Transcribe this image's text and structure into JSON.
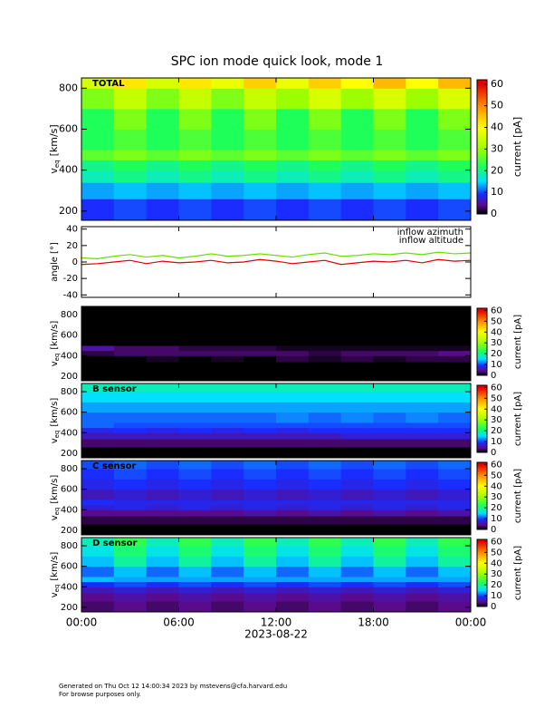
{
  "chart_data": [
    {
      "type": "heatmap",
      "title": "SPC ion mode quick look, mode 1",
      "label": "TOTAL",
      "ylabel": {
        "main": "v",
        "sub": "eq",
        "unit": "[km/s]"
      },
      "ylim": [
        155,
        850
      ],
      "yticks": [
        200,
        400,
        600,
        800
      ],
      "xbins": [
        0,
        2,
        4,
        6,
        8,
        10,
        12,
        14,
        16,
        18,
        20,
        22,
        24
      ],
      "ybins": [
        155,
        260,
        340,
        400,
        450,
        500,
        600,
        700,
        800,
        850
      ],
      "z": [
        [
          9,
          10,
          9,
          10,
          9,
          10,
          9,
          10,
          9,
          10,
          9,
          10
        ],
        [
          13,
          14,
          13,
          14,
          13,
          14,
          13,
          14,
          13,
          14,
          13,
          14
        ],
        [
          18,
          20,
          18,
          20,
          18,
          20,
          18,
          20,
          18,
          20,
          18,
          20
        ],
        [
          20,
          22,
          20,
          22,
          20,
          22,
          20,
          22,
          20,
          22,
          20,
          22
        ],
        [
          26,
          28,
          26,
          28,
          26,
          28,
          26,
          28,
          26,
          28,
          26,
          28
        ],
        [
          22,
          25,
          22,
          25,
          22,
          25,
          22,
          25,
          22,
          25,
          22,
          25
        ],
        [
          22,
          28,
          22,
          28,
          22,
          28,
          22,
          28,
          22,
          28,
          22,
          28
        ],
        [
          28,
          34,
          28,
          34,
          28,
          34,
          30,
          36,
          30,
          36,
          30,
          36
        ],
        [
          36,
          42,
          36,
          42,
          38,
          44,
          38,
          44,
          40,
          46,
          40,
          46
        ]
      ],
      "colorbar": {
        "label": "current [pA]",
        "lim": [
          0,
          62
        ],
        "ticks": [
          0,
          10,
          20,
          30,
          40,
          50,
          60
        ]
      }
    },
    {
      "type": "line",
      "ylabel": "angle [°]",
      "ylim": [
        -43,
        43
      ],
      "yticks": [
        -40,
        -20,
        0,
        20,
        40
      ],
      "x": [
        0,
        1,
        2,
        3,
        4,
        5,
        6,
        7,
        8,
        9,
        10,
        11,
        12,
        13,
        14,
        15,
        16,
        17,
        18,
        19,
        20,
        21,
        22,
        23,
        24
      ],
      "series": [
        {
          "name": "inflow azimuth",
          "color": "#e00000",
          "values": [
            -3,
            -2,
            0,
            2,
            -2,
            1,
            -1,
            0,
            2,
            -1,
            0,
            3,
            1,
            -2,
            0,
            2,
            -3,
            -1,
            1,
            0,
            2,
            -1,
            3,
            1,
            2
          ]
        },
        {
          "name": "inflow altitude",
          "color": "#66e000",
          "values": [
            5,
            4,
            7,
            9,
            6,
            8,
            5,
            7,
            10,
            7,
            8,
            10,
            8,
            6,
            9,
            11,
            7,
            8,
            10,
            9,
            11,
            9,
            12,
            10,
            11
          ]
        }
      ]
    },
    {
      "type": "heatmap",
      "ylabel": {
        "main": "v",
        "sub": "eq",
        "unit": "[km/s]"
      },
      "ylim": [
        155,
        880
      ],
      "yticks": [
        200,
        400,
        600,
        800
      ],
      "xbins": [
        0,
        2,
        4,
        6,
        8,
        10,
        12,
        14,
        16,
        18,
        20,
        22,
        24
      ],
      "ybins": [
        155,
        260,
        340,
        400,
        450,
        500,
        600,
        700,
        800,
        880
      ],
      "z": [
        [
          0,
          0,
          0,
          0,
          0,
          0,
          0,
          0,
          0,
          0,
          0,
          0
        ],
        [
          0,
          0,
          0,
          0,
          0,
          0,
          0,
          0,
          0,
          0,
          0,
          0
        ],
        [
          0,
          0,
          1,
          0,
          1,
          0,
          2,
          1,
          2,
          1,
          2,
          2
        ],
        [
          2,
          3,
          3,
          3,
          3,
          3,
          3,
          2,
          3,
          3,
          3,
          4
        ],
        [
          5,
          3,
          3,
          2,
          2,
          2,
          1,
          1,
          1,
          1,
          1,
          1
        ],
        [
          0,
          0,
          0,
          0,
          0,
          0,
          0,
          0,
          0,
          0,
          0,
          0
        ],
        [
          0,
          0,
          0,
          0,
          0,
          0,
          0,
          0,
          0,
          0,
          0,
          0
        ],
        [
          0,
          0,
          0,
          0,
          0,
          0,
          0,
          0,
          0,
          0,
          0,
          0
        ],
        [
          0,
          0,
          0,
          0,
          0,
          0,
          0,
          0,
          0,
          0,
          0,
          0
        ]
      ],
      "colorbar": {
        "label": "current [pA]",
        "lim": [
          0,
          62
        ],
        "ticks": [
          0,
          10,
          20,
          30,
          40,
          50,
          60
        ]
      }
    },
    {
      "type": "heatmap",
      "label": "B sensor",
      "ylabel": {
        "main": "v",
        "sub": "eq",
        "unit": "[km/s]"
      },
      "ylim": [
        155,
        880
      ],
      "yticks": [
        200,
        400,
        600,
        800
      ],
      "xbins": [
        0,
        2,
        4,
        6,
        8,
        10,
        12,
        14,
        16,
        18,
        20,
        22,
        24
      ],
      "ybins": [
        155,
        260,
        340,
        400,
        450,
        500,
        600,
        700,
        800,
        880
      ],
      "z": [
        [
          0,
          0,
          0,
          0,
          0,
          0,
          0,
          0,
          0,
          0,
          0,
          0
        ],
        [
          3,
          3,
          3,
          3,
          3,
          3,
          3,
          3,
          3,
          3,
          3,
          3
        ],
        [
          6,
          6,
          6,
          6,
          6,
          6,
          6,
          6,
          7,
          7,
          7,
          7
        ],
        [
          8,
          9,
          8,
          9,
          8,
          9,
          8,
          9,
          9,
          9,
          9,
          9
        ],
        [
          11,
          10,
          10,
          10,
          10,
          10,
          10,
          10,
          10,
          10,
          10,
          10
        ],
        [
          11,
          11,
          11,
          11,
          11,
          11,
          12,
          11,
          12,
          11,
          12,
          11
        ],
        [
          13,
          13,
          13,
          13,
          13,
          13,
          13,
          13,
          13,
          13,
          13,
          13
        ],
        [
          15,
          15,
          15,
          15,
          15,
          15,
          15,
          15,
          15,
          15,
          15,
          15
        ],
        [
          18,
          18,
          18,
          18,
          18,
          18,
          18,
          18,
          18,
          18,
          18,
          18
        ]
      ],
      "colorbar": {
        "label": "current [pA]",
        "lim": [
          0,
          62
        ],
        "ticks": [
          0,
          10,
          20,
          30,
          40,
          50,
          60
        ]
      }
    },
    {
      "type": "heatmap",
      "label": "C sensor",
      "ylabel": {
        "main": "v",
        "sub": "eq",
        "unit": "[km/s]"
      },
      "ylim": [
        155,
        880
      ],
      "yticks": [
        200,
        400,
        600,
        800
      ],
      "xbins": [
        0,
        2,
        4,
        6,
        8,
        10,
        12,
        14,
        16,
        18,
        20,
        22,
        24
      ],
      "ybins": [
        155,
        260,
        340,
        400,
        450,
        500,
        600,
        700,
        800,
        880
      ],
      "z": [
        [
          0,
          0,
          0,
          0,
          0,
          0,
          0,
          0,
          0,
          0,
          0,
          0
        ],
        [
          2,
          2,
          2,
          2,
          2,
          2,
          2,
          2,
          2,
          2,
          2,
          2
        ],
        [
          4,
          4,
          4,
          4,
          4,
          5,
          4,
          5,
          4,
          5,
          4,
          5
        ],
        [
          7,
          8,
          7,
          8,
          7,
          8,
          7,
          8,
          7,
          8,
          7,
          8
        ],
        [
          9,
          8,
          8,
          8,
          8,
          8,
          8,
          8,
          8,
          8,
          8,
          8
        ],
        [
          6,
          7,
          6,
          7,
          6,
          7,
          6,
          7,
          6,
          7,
          6,
          7
        ],
        [
          8,
          9,
          8,
          9,
          8,
          9,
          8,
          9,
          8,
          9,
          8,
          9
        ],
        [
          9,
          10,
          9,
          10,
          9,
          10,
          9,
          10,
          9,
          10,
          9,
          10
        ],
        [
          10,
          11,
          10,
          11,
          10,
          11,
          10,
          11,
          10,
          11,
          10,
          11
        ]
      ],
      "colorbar": {
        "label": "current [pA]",
        "lim": [
          0,
          62
        ],
        "ticks": [
          0,
          10,
          20,
          30,
          40,
          50,
          60
        ]
      }
    },
    {
      "type": "heatmap",
      "label": "D sensor",
      "ylabel": {
        "main": "v",
        "sub": "eq",
        "unit": "[km/s]"
      },
      "ylim": [
        155,
        880
      ],
      "yticks": [
        200,
        400,
        600,
        800
      ],
      "xbins": [
        0,
        2,
        4,
        6,
        8,
        10,
        12,
        14,
        16,
        18,
        20,
        22,
        24
      ],
      "ybins": [
        155,
        260,
        340,
        400,
        450,
        500,
        600,
        700,
        800,
        880
      ],
      "z": [
        [
          3,
          4,
          3,
          4,
          3,
          4,
          3,
          4,
          3,
          4,
          3,
          4
        ],
        [
          4,
          5,
          4,
          5,
          4,
          5,
          4,
          5,
          4,
          5,
          4,
          5
        ],
        [
          6,
          7,
          6,
          7,
          6,
          7,
          6,
          7,
          6,
          7,
          6,
          7
        ],
        [
          9,
          10,
          9,
          10,
          9,
          10,
          9,
          10,
          9,
          10,
          9,
          10
        ],
        [
          14,
          13,
          13,
          13,
          13,
          13,
          13,
          13,
          13,
          13,
          13,
          13
        ],
        [
          11,
          14,
          11,
          14,
          11,
          14,
          11,
          14,
          11,
          14,
          11,
          14
        ],
        [
          14,
          19,
          14,
          19,
          14,
          19,
          14,
          19,
          14,
          19,
          14,
          19
        ],
        [
          16,
          21,
          16,
          21,
          16,
          21,
          16,
          21,
          16,
          21,
          16,
          21
        ],
        [
          18,
          23,
          18,
          23,
          18,
          23,
          18,
          23,
          18,
          23,
          18,
          23
        ]
      ],
      "colorbar": {
        "label": "current [pA]",
        "lim": [
          0,
          62
        ],
        "ticks": [
          0,
          10,
          20,
          30,
          40,
          50,
          60
        ]
      }
    }
  ],
  "x_axis": {
    "lim": [
      0,
      24
    ],
    "label": "2023-08-22",
    "ticks": [
      {
        "value": 0,
        "label": "00:00"
      },
      {
        "value": 6,
        "label": "06:00"
      },
      {
        "value": 12,
        "label": "12:00"
      },
      {
        "value": 18,
        "label": "18:00"
      },
      {
        "value": 24,
        "label": "00:00"
      }
    ]
  },
  "colorscale": [
    [
      0,
      "#000000"
    ],
    [
      4,
      "#5a0a8c"
    ],
    [
      9,
      "#1a2cff"
    ],
    [
      15,
      "#00e0ff"
    ],
    [
      22,
      "#1eff5a"
    ],
    [
      30,
      "#9cff00"
    ],
    [
      40,
      "#ffff00"
    ],
    [
      50,
      "#ff8a00"
    ],
    [
      60,
      "#e00000"
    ]
  ],
  "footer": [
    "Generated on Thu Oct 12 14:00:34 2023 by mstevens@cfa.harvard.edu",
    "For browse purposes only."
  ]
}
